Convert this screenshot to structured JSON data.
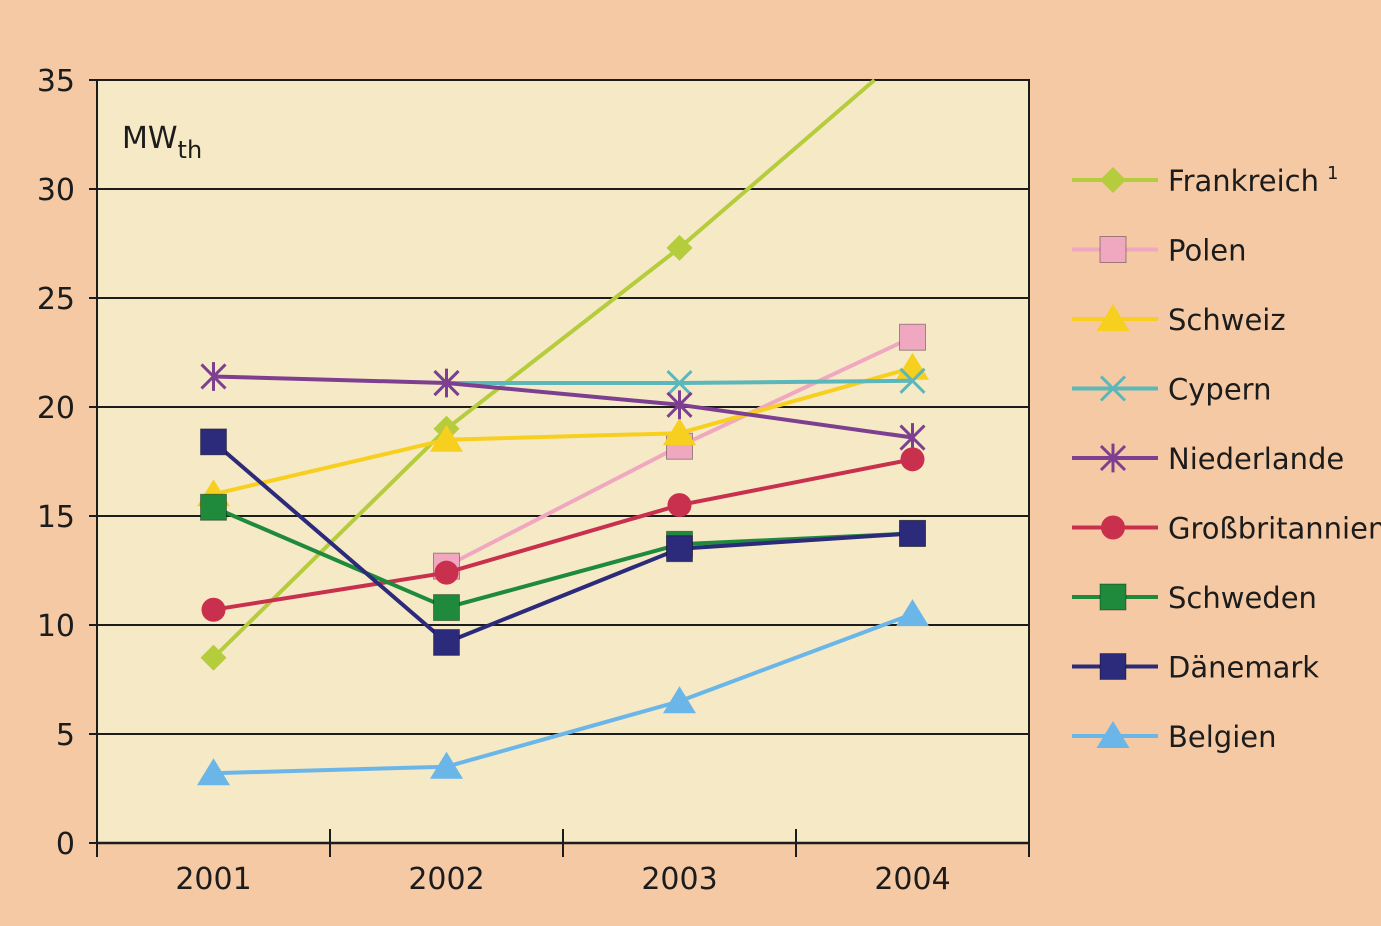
{
  "chart_data": {
    "type": "line",
    "title": "",
    "xlabel": "",
    "ylabel": "MW",
    "ylabel_sub": "th",
    "x": [
      "2001",
      "2002",
      "2003",
      "2004"
    ],
    "ylim": [
      0,
      35
    ],
    "yticks": [
      "0",
      "5",
      "10",
      "15",
      "20",
      "25",
      "30",
      "35"
    ],
    "grid": "horizontal",
    "legend_position": "right",
    "series": [
      {
        "name": "Frankreich",
        "footnote": "1",
        "color": "#b5cc3c",
        "marker": "diamond",
        "values": [
          8.5,
          19,
          27.3,
          36.5
        ]
      },
      {
        "name": "Polen",
        "footnote": "",
        "color": "#f0a8c0",
        "marker": "square",
        "values": [
          null,
          12.7,
          18.2,
          23.2
        ]
      },
      {
        "name": "Schweiz",
        "footnote": "",
        "color": "#f7cf1e",
        "marker": "triangle",
        "values": [
          16,
          18.5,
          18.8,
          21.8
        ]
      },
      {
        "name": "Cypern",
        "footnote": "",
        "color": "#5bb7ba",
        "marker": "x",
        "values": [
          null,
          21.1,
          21.1,
          21.2
        ]
      },
      {
        "name": "Niederlande",
        "footnote": "",
        "color": "#7d3f8f",
        "marker": "star",
        "values": [
          21.4,
          21.1,
          20.1,
          18.6
        ]
      },
      {
        "name": "Großbritannien",
        "footnote": "",
        "color": "#c8304e",
        "marker": "circle",
        "values": [
          10.7,
          12.4,
          15.5,
          17.6
        ]
      },
      {
        "name": "Schweden",
        "footnote": "",
        "color": "#1f8a3c",
        "marker": "square",
        "values": [
          15.4,
          10.8,
          13.7,
          14.2
        ]
      },
      {
        "name": "Dänemark",
        "footnote": "",
        "color": "#2c2a7a",
        "marker": "square",
        "values": [
          18.4,
          9.2,
          13.5,
          14.2
        ]
      },
      {
        "name": "Belgien",
        "footnote": "",
        "color": "#6ab6e8",
        "marker": "triangle",
        "values": [
          3.2,
          3.5,
          6.5,
          10.5
        ]
      }
    ]
  }
}
